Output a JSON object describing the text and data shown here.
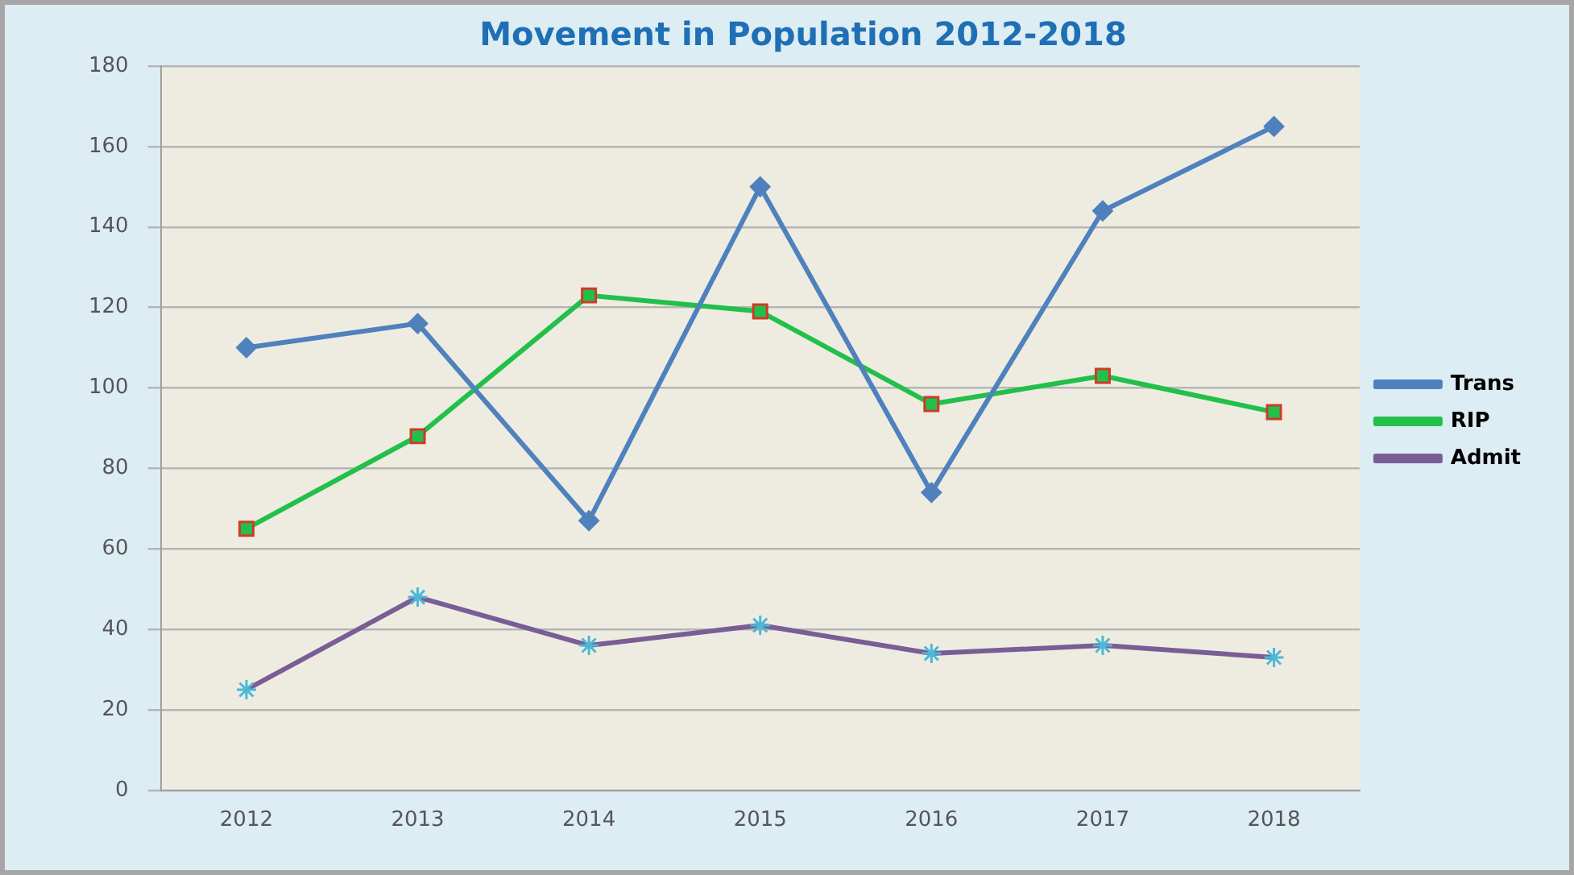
{
  "chart_data": {
    "type": "line",
    "title": "Movement in Population 2012-2018",
    "categories": [
      "2012",
      "2013",
      "2014",
      "2015",
      "2016",
      "2017",
      "2018"
    ],
    "series": [
      {
        "name": "Trans",
        "color": "#4f81bd",
        "marker": "diamond",
        "values": [
          110,
          116,
          67,
          150,
          74,
          144,
          165
        ]
      },
      {
        "name": "RIP",
        "color": "#22c04a",
        "marker": "square",
        "values": [
          65,
          88,
          123,
          119,
          96,
          103,
          94
        ]
      },
      {
        "name": "Admit",
        "color": "#7a5d95",
        "marker": "cross",
        "values": [
          25,
          48,
          36,
          41,
          34,
          36,
          33
        ]
      }
    ],
    "ylim": [
      0,
      180
    ],
    "yticks": [
      0,
      20,
      40,
      60,
      80,
      100,
      120,
      140,
      160,
      180
    ],
    "grid": "y",
    "legend": "right"
  }
}
